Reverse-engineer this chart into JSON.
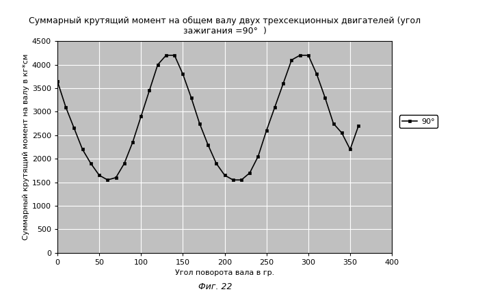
{
  "title_line1": "Суммарный крутящий момент на общем валу двух трехсекционных двигателей (угол",
  "title_line2": "зажигания =90°  )",
  "xlabel": "Угол поворота вала в гр.",
  "ylabel": "Суммарный крутящий момент на валу в кг*см",
  "fig_label": "Фиг. 22",
  "legend_label": "90°",
  "xlim": [
    0,
    400
  ],
  "ylim": [
    0,
    4500
  ],
  "xticks": [
    0,
    50,
    100,
    150,
    200,
    250,
    300,
    350,
    400
  ],
  "yticks": [
    0,
    500,
    1000,
    1500,
    2000,
    2500,
    3000,
    3500,
    4000,
    4500
  ],
  "background_color": "#c8c8c8",
  "line_color": "#000000",
  "marker_color": "#000000",
  "grid_color": "#ffffff",
  "x_data": [
    0,
    10,
    20,
    30,
    40,
    50,
    60,
    70,
    80,
    90,
    100,
    110,
    120,
    130,
    140,
    150,
    160,
    170,
    180,
    190,
    200,
    210,
    220,
    230,
    240,
    250,
    260,
    270,
    280,
    290,
    300,
    310,
    320,
    330,
    340,
    350,
    360
  ],
  "y_data": [
    3650,
    3100,
    2650,
    2200,
    1900,
    1650,
    1550,
    1600,
    1900,
    2350,
    2900,
    3450,
    4000,
    4200,
    4200,
    3800,
    3300,
    2750,
    2300,
    1900,
    1650,
    1550,
    1550,
    1700,
    2050,
    2600,
    3100,
    3600,
    4100,
    4200,
    4200,
    3800,
    3300,
    2750,
    2550,
    2200,
    2700
  ],
  "title_fontsize": 9,
  "axis_fontsize": 8,
  "tick_fontsize": 8
}
